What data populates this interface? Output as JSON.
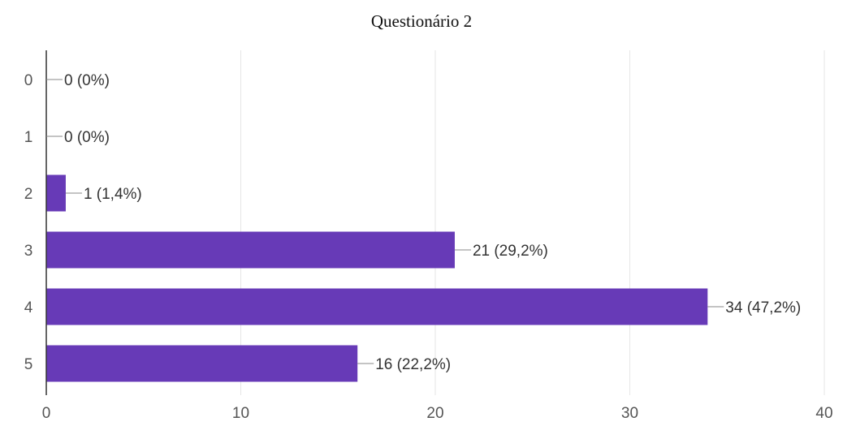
{
  "chart_data": {
    "type": "bar",
    "orientation": "horizontal",
    "title": "Questionário 2",
    "xlabel": "",
    "ylabel": "",
    "categories": [
      "0",
      "1",
      "2",
      "3",
      "4",
      "5"
    ],
    "values": [
      0,
      0,
      1,
      21,
      34,
      16
    ],
    "data_labels": [
      "0 (0%)",
      "0 (0%)",
      "1 (1,4%)",
      "21 (29,2%)",
      "34 (47,2%)",
      "16 (22,2%)"
    ],
    "xlim": [
      0,
      40
    ],
    "x_ticks": [
      "0",
      "10",
      "20",
      "30",
      "40"
    ],
    "grid": true,
    "legend": "none",
    "bar_color": "#673ab7",
    "grid_color": "#e6e6e6",
    "axis_color": "#333333"
  }
}
